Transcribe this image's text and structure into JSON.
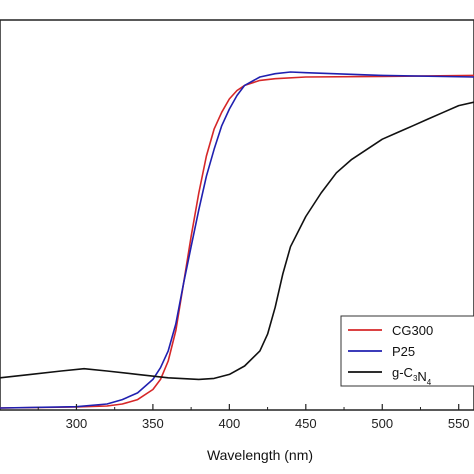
{
  "chart_data": {
    "type": "line",
    "title": "",
    "xlabel": "Wavelength (nm)",
    "ylabel": "",
    "xlim": [
      250,
      560
    ],
    "ylim": [
      0,
      1.05
    ],
    "xticks": [
      "300",
      "350",
      "400",
      "450",
      "500",
      "550"
    ],
    "x_tick_values": [
      300,
      350,
      400,
      450,
      500,
      550
    ],
    "grid": false,
    "legend_position": "bottom-right",
    "series": [
      {
        "name": "CG300",
        "color": "#d62728",
        "x": [
          250,
          300,
          320,
          330,
          340,
          350,
          355,
          360,
          365,
          370,
          375,
          380,
          385,
          390,
          395,
          400,
          405,
          410,
          420,
          430,
          450,
          500,
          560
        ],
        "y": [
          0.0,
          0.003,
          0.006,
          0.012,
          0.025,
          0.055,
          0.085,
          0.14,
          0.23,
          0.37,
          0.51,
          0.64,
          0.75,
          0.83,
          0.88,
          0.92,
          0.945,
          0.96,
          0.975,
          0.98,
          0.985,
          0.987,
          0.99
        ]
      },
      {
        "name": "P25",
        "color": "#2020b0",
        "x": [
          250,
          300,
          320,
          330,
          340,
          350,
          355,
          360,
          365,
          370,
          375,
          380,
          385,
          390,
          395,
          400,
          405,
          410,
          420,
          430,
          440,
          450,
          500,
          560
        ],
        "y": [
          0.0,
          0.004,
          0.012,
          0.025,
          0.045,
          0.085,
          0.12,
          0.17,
          0.25,
          0.37,
          0.48,
          0.59,
          0.69,
          0.77,
          0.84,
          0.89,
          0.93,
          0.96,
          0.985,
          0.995,
          1.0,
          0.998,
          0.99,
          0.985
        ]
      },
      {
        "name": "g-C3N4",
        "color": "#111111",
        "x": [
          250,
          270,
          290,
          305,
          320,
          340,
          360,
          380,
          390,
          400,
          410,
          420,
          425,
          430,
          435,
          440,
          450,
          460,
          470,
          480,
          490,
          500,
          510,
          520,
          530,
          540,
          550,
          560
        ],
        "y": [
          0.09,
          0.1,
          0.11,
          0.117,
          0.11,
          0.1,
          0.09,
          0.085,
          0.088,
          0.1,
          0.125,
          0.17,
          0.22,
          0.3,
          0.4,
          0.48,
          0.57,
          0.64,
          0.7,
          0.74,
          0.77,
          0.8,
          0.82,
          0.84,
          0.86,
          0.88,
          0.9,
          0.91
        ]
      }
    ]
  }
}
